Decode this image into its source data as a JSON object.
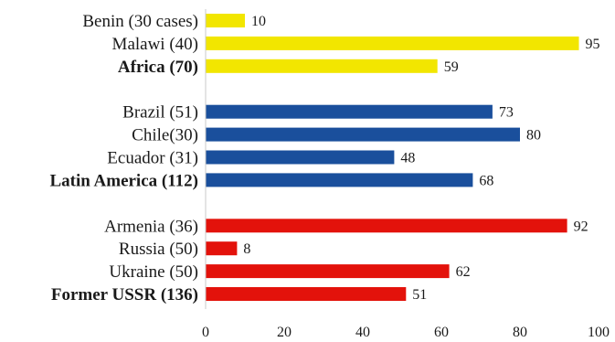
{
  "chart_data": {
    "type": "bar",
    "orientation": "horizontal",
    "title": "",
    "xlabel": "",
    "ylabel": "",
    "xlim": [
      0,
      100
    ],
    "x_ticks": [
      "0",
      "20",
      "40",
      "60",
      "80",
      "100"
    ],
    "grid": false,
    "legend": "none",
    "groups": [
      {
        "color": "#f2e600",
        "categories": [
          {
            "label": "Benin (30 cases)",
            "value": 10,
            "bold": false
          },
          {
            "label": "Malawi (40)",
            "value": 95,
            "bold": false
          },
          {
            "label": "Africa (70)",
            "value": 59,
            "bold": true
          }
        ]
      },
      {
        "color": "#1a4f9c",
        "categories": [
          {
            "label": "Brazil (51)",
            "value": 73,
            "bold": false
          },
          {
            "label": "Chile(30)",
            "value": 80,
            "bold": false
          },
          {
            "label": "Ecuador (31)",
            "value": 48,
            "bold": false
          },
          {
            "label": "Latin America (112)",
            "value": 68,
            "bold": true
          }
        ]
      },
      {
        "color": "#e3120b",
        "categories": [
          {
            "label": "Armenia (36)",
            "value": 92,
            "bold": false
          },
          {
            "label": "Russia (50)",
            "value": 8,
            "bold": false
          },
          {
            "label": "Ukraine (50)",
            "value": 62,
            "bold": false
          },
          {
            "label": "Former USSR (136)",
            "value": 51,
            "bold": true
          }
        ]
      }
    ]
  }
}
